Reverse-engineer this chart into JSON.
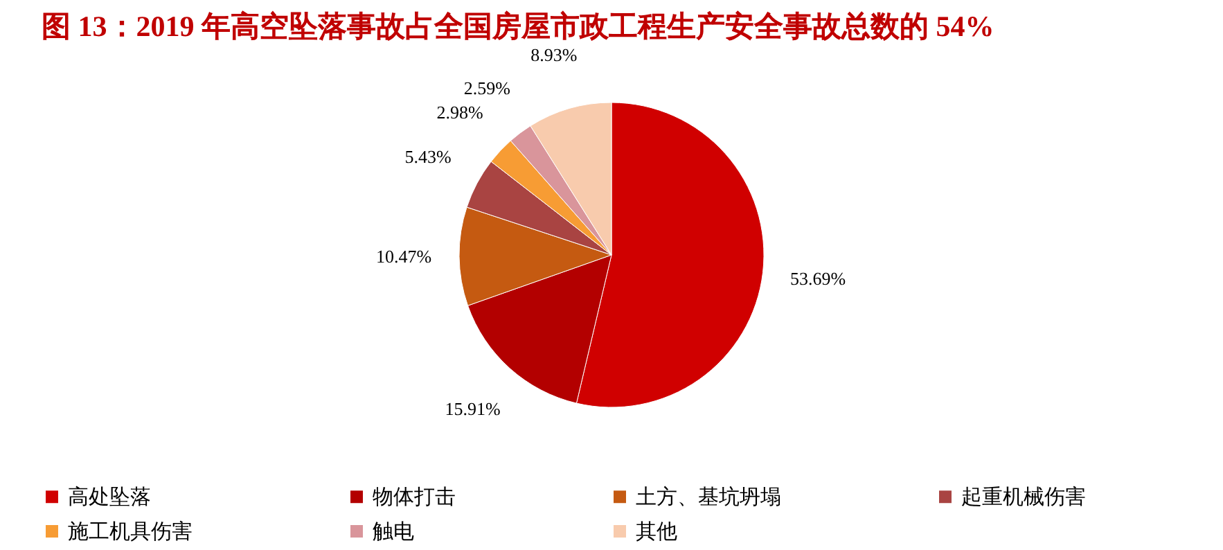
{
  "chart_data": {
    "type": "pie",
    "title": "图 13：2019 年高空坠落事故占全国房屋市政工程生产安全事故总数的 54%",
    "categories": [
      "高处坠落",
      "物体打击",
      "土方、基坑坍塌",
      "起重机械伤害",
      "施工机具伤害",
      "触电",
      "其他"
    ],
    "values": [
      53.69,
      15.91,
      10.47,
      5.43,
      2.98,
      2.59,
      8.93
    ],
    "value_labels": [
      "53.69%",
      "15.91%",
      "10.47%",
      "5.43%",
      "2.98%",
      "2.59%",
      "8.93%"
    ],
    "colors": [
      "#d00000",
      "#b30000",
      "#c55a11",
      "#a94442",
      "#f79c34",
      "#d9959b",
      "#f8cbad"
    ],
    "legend": "bottom"
  }
}
